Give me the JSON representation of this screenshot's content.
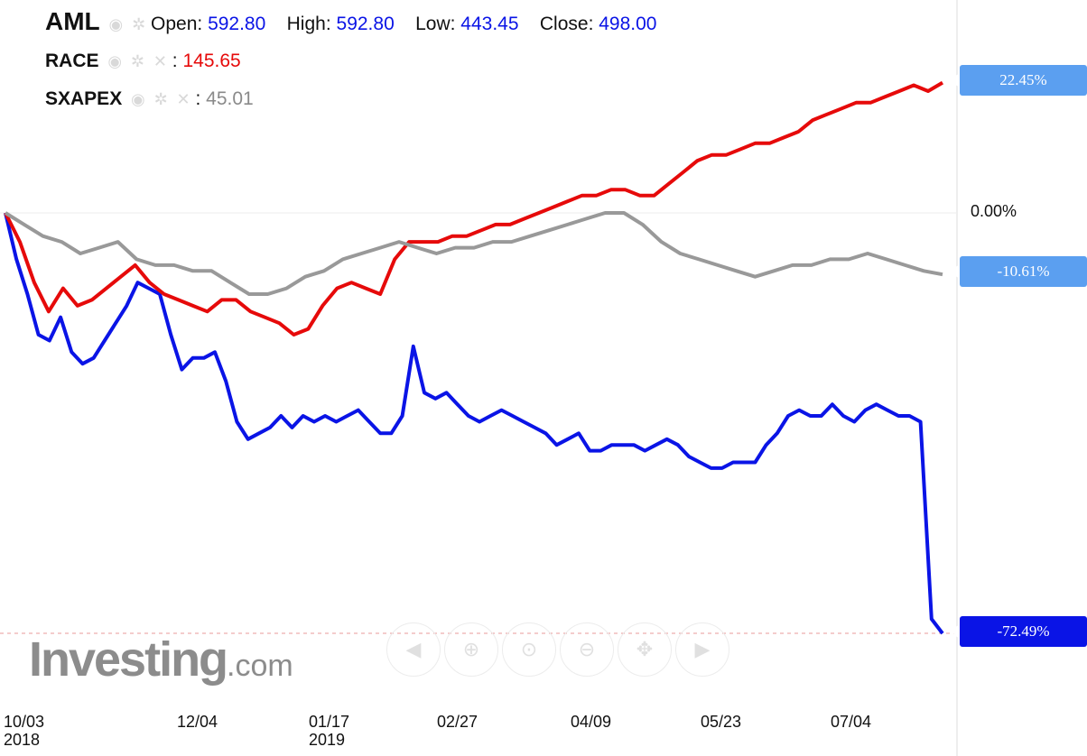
{
  "header": {
    "main_symbol": "AML",
    "open_label": "Open:",
    "open_value": "592.80",
    "high_label": "High:",
    "high_value": "592.80",
    "low_label": "Low:",
    "low_value": "443.45",
    "close_label": "Close:",
    "close_value": "498.00",
    "compare": [
      {
        "symbol": "RACE",
        "value": "145.65"
      },
      {
        "symbol": "SXAPEX",
        "value": "45.01"
      }
    ],
    "separator": ":"
  },
  "axis": {
    "zero_label": "0.00%",
    "x_ticks": [
      {
        "label": "10/03",
        "year": "2018"
      },
      {
        "label": "12/04",
        "year": ""
      },
      {
        "label": "01/17",
        "year": "2019"
      },
      {
        "label": "02/27",
        "year": ""
      },
      {
        "label": "04/09",
        "year": ""
      },
      {
        "label": "05/23",
        "year": ""
      },
      {
        "label": "07/04",
        "year": ""
      }
    ]
  },
  "tags": {
    "race": "22.45%",
    "sxapex": "-10.61%",
    "aml": "-72.49%"
  },
  "watermark": {
    "brand": "Investing",
    "suffix": ".com"
  },
  "colors": {
    "aml": "#0a14e6",
    "race": "#e60a0a",
    "sxapex": "#999999",
    "tag_race": "#5b9ff0",
    "tag_sxapex": "#5b9ff0",
    "tag_aml": "#0a14e6"
  },
  "icons": [
    "eye-icon",
    "gear-icon",
    "close-icon",
    "nav-left-icon",
    "zoom-in-icon",
    "zoom-reset-icon",
    "zoom-out-icon",
    "pan-icon",
    "nav-right-icon"
  ],
  "chart_data": {
    "type": "line",
    "x_unit": "trading date",
    "y_unit": "percent change",
    "ylim": [
      -75,
      28
    ],
    "series": [
      {
        "name": "AML",
        "color": "#0a14e6",
        "values": [
          0,
          -8,
          -14,
          -21,
          -22,
          -18,
          -24,
          -26,
          -25,
          -22,
          -19,
          -16,
          -12,
          -13,
          -14,
          -21,
          -27,
          -25,
          -25,
          -24,
          -29,
          -36,
          -39,
          -38,
          -37,
          -35,
          -37,
          -35,
          -36,
          -35,
          -36,
          -35,
          -34,
          -36,
          -38,
          -38,
          -35,
          -23,
          -31,
          -32,
          -31,
          -33,
          -35,
          -36,
          -35,
          -34,
          -35,
          -36,
          -37,
          -38,
          -40,
          -39,
          -38,
          -41,
          -41,
          -40,
          -40,
          -40,
          -41,
          -40,
          -39,
          -40,
          -42,
          -43,
          -44,
          -44,
          -43,
          -43,
          -43,
          -40,
          -38,
          -35,
          -34,
          -35,
          -35,
          -33,
          -35,
          -36,
          -34,
          -33,
          -34,
          -35,
          -35,
          -36,
          -70,
          -72.49
        ]
      },
      {
        "name": "RACE",
        "color": "#e60a0a",
        "values": [
          0,
          -5,
          -12,
          -17,
          -13,
          -16,
          -15,
          -13,
          -11,
          -9,
          -12,
          -14,
          -15,
          -16,
          -17,
          -15,
          -15,
          -17,
          -18,
          -19,
          -21,
          -20,
          -16,
          -13,
          -12,
          -13,
          -14,
          -8,
          -5,
          -5,
          -5,
          -4,
          -4,
          -3,
          -2,
          -2,
          -1,
          0,
          1,
          2,
          3,
          3,
          4,
          4,
          3,
          3,
          5,
          7,
          9,
          10,
          10,
          11,
          12,
          12,
          13,
          14,
          16,
          17,
          18,
          19,
          19,
          20,
          21,
          22,
          21,
          22.45
        ]
      },
      {
        "name": "SXAPEX",
        "color": "#999999",
        "values": [
          0,
          -2,
          -4,
          -5,
          -7,
          -6,
          -5,
          -8,
          -9,
          -9,
          -10,
          -10,
          -12,
          -14,
          -14,
          -13,
          -11,
          -10,
          -8,
          -7,
          -6,
          -5,
          -6,
          -7,
          -6,
          -6,
          -5,
          -5,
          -4,
          -3,
          -2,
          -1,
          0,
          0,
          -2,
          -5,
          -7,
          -8,
          -9,
          -10,
          -11,
          -10,
          -9,
          -9,
          -8,
          -8,
          -7,
          -8,
          -9,
          -10,
          -10.61
        ]
      }
    ]
  }
}
